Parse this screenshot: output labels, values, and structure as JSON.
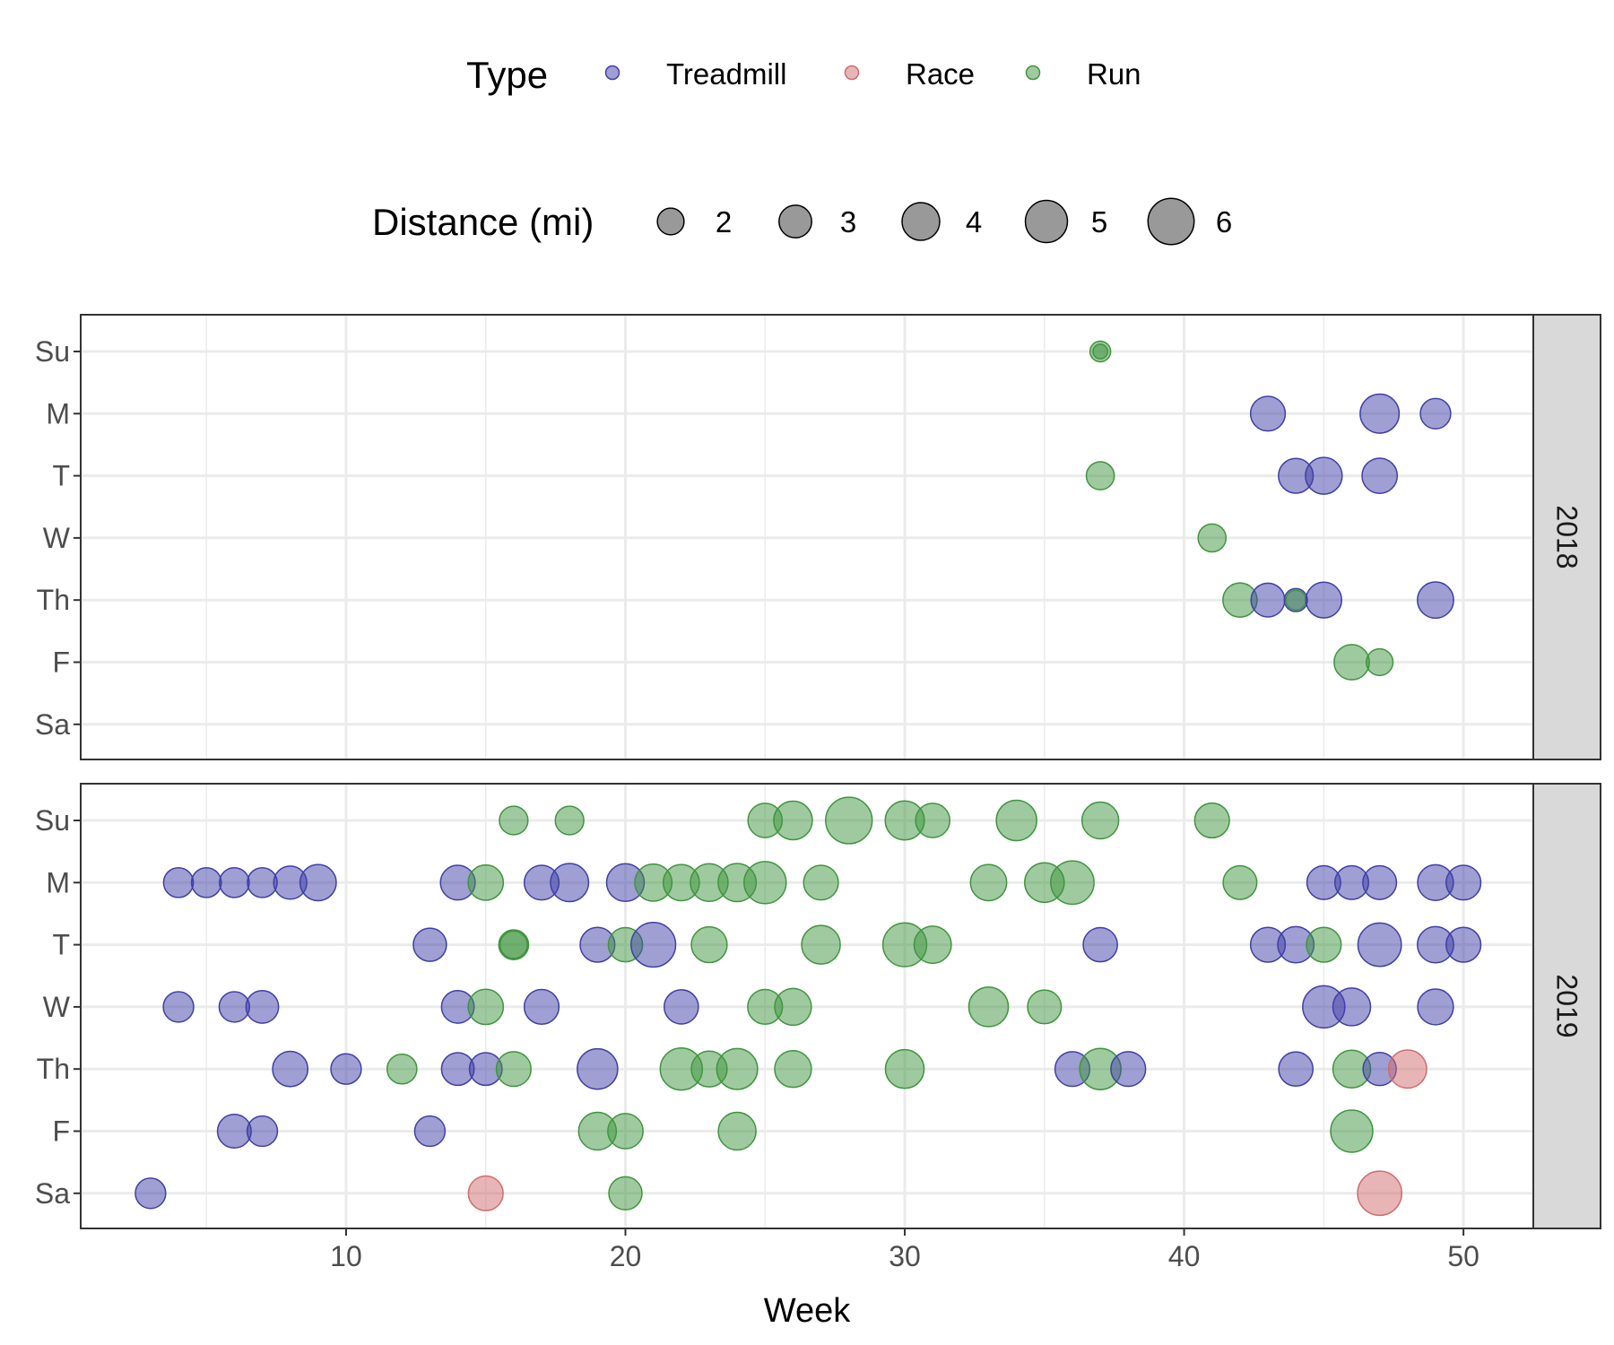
{
  "chart_data": {
    "type": "scatter",
    "xlabel": "Week",
    "x_ticks": [
      10,
      20,
      30,
      40,
      50
    ],
    "xlim": [
      0.5,
      52.5
    ],
    "y_categories": [
      "Su",
      "M",
      "T",
      "W",
      "Th",
      "F",
      "Sa"
    ],
    "facets": [
      "2018",
      "2019"
    ],
    "legend_type": {
      "title": "Type",
      "items": [
        {
          "name": "Treadmill",
          "color": "#3f3fa8"
        },
        {
          "name": "Race",
          "color": "#d06c6c"
        },
        {
          "name": "Run",
          "color": "#3f953f"
        }
      ]
    },
    "legend_size": {
      "title": "Distance (mi)",
      "values": [
        2,
        3,
        4,
        5,
        6
      ]
    },
    "points": {
      "2018": [
        {
          "week": 37,
          "day": "Su",
          "type": "Run",
          "distance": 1.2
        },
        {
          "week": 37,
          "day": "Su",
          "type": "Run",
          "distance": 0.6
        },
        {
          "week": 43,
          "day": "M",
          "type": "Treadmill",
          "distance": 3.4
        },
        {
          "week": 47,
          "day": "M",
          "type": "Treadmill",
          "distance": 4.3
        },
        {
          "week": 49,
          "day": "M",
          "type": "Treadmill",
          "distance": 2.6
        },
        {
          "week": 37,
          "day": "T",
          "type": "Run",
          "distance": 2.2
        },
        {
          "week": 44,
          "day": "T",
          "type": "Treadmill",
          "distance": 3.4
        },
        {
          "week": 45,
          "day": "T",
          "type": "Treadmill",
          "distance": 3.8
        },
        {
          "week": 47,
          "day": "T",
          "type": "Treadmill",
          "distance": 3.5
        },
        {
          "week": 41,
          "day": "W",
          "type": "Run",
          "distance": 2.2
        },
        {
          "week": 42,
          "day": "Th",
          "type": "Run",
          "distance": 3.3
        },
        {
          "week": 43,
          "day": "Th",
          "type": "Treadmill",
          "distance": 3.2
        },
        {
          "week": 44,
          "day": "Th",
          "type": "Treadmill",
          "distance": 1.5
        },
        {
          "week": 44,
          "day": "Th",
          "type": "Run",
          "distance": 1.1
        },
        {
          "week": 45,
          "day": "Th",
          "type": "Treadmill",
          "distance": 3.6
        },
        {
          "week": 49,
          "day": "Th",
          "type": "Treadmill",
          "distance": 3.7
        },
        {
          "week": 46,
          "day": "F",
          "type": "Run",
          "distance": 3.5
        },
        {
          "week": 47,
          "day": "F",
          "type": "Run",
          "distance": 2.0
        }
      ],
      "2019": [
        {
          "week": 16,
          "day": "Su",
          "type": "Run",
          "distance": 2.3
        },
        {
          "week": 18,
          "day": "Su",
          "type": "Run",
          "distance": 2.3
        },
        {
          "week": 25,
          "day": "Su",
          "type": "Run",
          "distance": 3.3
        },
        {
          "week": 26,
          "day": "Su",
          "type": "Run",
          "distance": 4.2
        },
        {
          "week": 28,
          "day": "Su",
          "type": "Run",
          "distance": 6.1
        },
        {
          "week": 30,
          "day": "Su",
          "type": "Run",
          "distance": 4.3
        },
        {
          "week": 31,
          "day": "Su",
          "type": "Run",
          "distance": 3.3
        },
        {
          "week": 34,
          "day": "Su",
          "type": "Run",
          "distance": 4.6
        },
        {
          "week": 37,
          "day": "Su",
          "type": "Run",
          "distance": 3.8
        },
        {
          "week": 41,
          "day": "Su",
          "type": "Run",
          "distance": 3.4
        },
        {
          "week": 4,
          "day": "M",
          "type": "Treadmill",
          "distance": 2.5
        },
        {
          "week": 5,
          "day": "M",
          "type": "Treadmill",
          "distance": 2.5
        },
        {
          "week": 6,
          "day": "M",
          "type": "Treadmill",
          "distance": 2.5
        },
        {
          "week": 7,
          "day": "M",
          "type": "Treadmill",
          "distance": 2.5
        },
        {
          "week": 8,
          "day": "M",
          "type": "Treadmill",
          "distance": 3.1
        },
        {
          "week": 9,
          "day": "M",
          "type": "Treadmill",
          "distance": 3.7
        },
        {
          "week": 14,
          "day": "M",
          "type": "Treadmill",
          "distance": 3.4
        },
        {
          "week": 15,
          "day": "M",
          "type": "Run",
          "distance": 3.5
        },
        {
          "week": 17,
          "day": "M",
          "type": "Treadmill",
          "distance": 3.4
        },
        {
          "week": 18,
          "day": "M",
          "type": "Treadmill",
          "distance": 4.1
        },
        {
          "week": 20,
          "day": "M",
          "type": "Treadmill",
          "distance": 4.0
        },
        {
          "week": 21,
          "day": "M",
          "type": "Run",
          "distance": 3.9
        },
        {
          "week": 22,
          "day": "M",
          "type": "Run",
          "distance": 3.7
        },
        {
          "week": 23,
          "day": "M",
          "type": "Run",
          "distance": 4.0
        },
        {
          "week": 24,
          "day": "M",
          "type": "Run",
          "distance": 4.1
        },
        {
          "week": 25,
          "day": "M",
          "type": "Run",
          "distance": 5.0
        },
        {
          "week": 27,
          "day": "M",
          "type": "Run",
          "distance": 3.4
        },
        {
          "week": 33,
          "day": "M",
          "type": "Run",
          "distance": 3.7
        },
        {
          "week": 35,
          "day": "M",
          "type": "Run",
          "distance": 4.4
        },
        {
          "week": 36,
          "day": "M",
          "type": "Run",
          "distance": 5.3
        },
        {
          "week": 42,
          "day": "M",
          "type": "Run",
          "distance": 3.2
        },
        {
          "week": 45,
          "day": "M",
          "type": "Treadmill",
          "distance": 3.2
        },
        {
          "week": 46,
          "day": "M",
          "type": "Treadmill",
          "distance": 3.2
        },
        {
          "week": 47,
          "day": "M",
          "type": "Treadmill",
          "distance": 3.2
        },
        {
          "week": 49,
          "day": "M",
          "type": "Treadmill",
          "distance": 3.6
        },
        {
          "week": 50,
          "day": "M",
          "type": "Treadmill",
          "distance": 3.4
        },
        {
          "week": 13,
          "day": "T",
          "type": "Treadmill",
          "distance": 3.1
        },
        {
          "week": 16,
          "day": "T",
          "type": "Run",
          "distance": 2.5
        },
        {
          "week": 16,
          "day": "T",
          "type": "Run",
          "distance": 2.1
        },
        {
          "week": 19,
          "day": "T",
          "type": "Treadmill",
          "distance": 3.4
        },
        {
          "week": 20,
          "day": "T",
          "type": "Run",
          "distance": 3.3
        },
        {
          "week": 21,
          "day": "T",
          "type": "Treadmill",
          "distance": 5.6
        },
        {
          "week": 23,
          "day": "T",
          "type": "Run",
          "distance": 3.6
        },
        {
          "week": 27,
          "day": "T",
          "type": "Run",
          "distance": 4.2
        },
        {
          "week": 30,
          "day": "T",
          "type": "Run",
          "distance": 5.4
        },
        {
          "week": 31,
          "day": "T",
          "type": "Run",
          "distance": 3.9
        },
        {
          "week": 37,
          "day": "T",
          "type": "Treadmill",
          "distance": 3.3
        },
        {
          "week": 43,
          "day": "T",
          "type": "Treadmill",
          "distance": 3.4
        },
        {
          "week": 44,
          "day": "T",
          "type": "Treadmill",
          "distance": 3.7
        },
        {
          "week": 45,
          "day": "T",
          "type": "Run",
          "distance": 3.4
        },
        {
          "week": 47,
          "day": "T",
          "type": "Treadmill",
          "distance": 5.3
        },
        {
          "week": 49,
          "day": "T",
          "type": "Treadmill",
          "distance": 3.7
        },
        {
          "week": 50,
          "day": "T",
          "type": "Treadmill",
          "distance": 3.4
        },
        {
          "week": 4,
          "day": "W",
          "type": "Treadmill",
          "distance": 2.6
        },
        {
          "week": 6,
          "day": "W",
          "type": "Treadmill",
          "distance": 2.6
        },
        {
          "week": 7,
          "day": "W",
          "type": "Treadmill",
          "distance": 3.0
        },
        {
          "week": 14,
          "day": "W",
          "type": "Treadmill",
          "distance": 3.0
        },
        {
          "week": 15,
          "day": "W",
          "type": "Run",
          "distance": 3.5
        },
        {
          "week": 17,
          "day": "W",
          "type": "Treadmill",
          "distance": 3.4
        },
        {
          "week": 22,
          "day": "W",
          "type": "Treadmill",
          "distance": 3.3
        },
        {
          "week": 25,
          "day": "W",
          "type": "Run",
          "distance": 3.4
        },
        {
          "week": 26,
          "day": "W",
          "type": "Run",
          "distance": 3.8
        },
        {
          "week": 33,
          "day": "W",
          "type": "Run",
          "distance": 4.4
        },
        {
          "week": 35,
          "day": "W",
          "type": "Run",
          "distance": 3.2
        },
        {
          "week": 45,
          "day": "W",
          "type": "Treadmill",
          "distance": 5.0
        },
        {
          "week": 46,
          "day": "W",
          "type": "Treadmill",
          "distance": 4.0
        },
        {
          "week": 49,
          "day": "W",
          "type": "Treadmill",
          "distance": 3.6
        },
        {
          "week": 8,
          "day": "Th",
          "type": "Treadmill",
          "distance": 3.5
        },
        {
          "week": 10,
          "day": "Th",
          "type": "Treadmill",
          "distance": 2.6
        },
        {
          "week": 12,
          "day": "Th",
          "type": "Run",
          "distance": 2.5
        },
        {
          "week": 14,
          "day": "Th",
          "type": "Treadmill",
          "distance": 3.0
        },
        {
          "week": 15,
          "day": "Th",
          "type": "Treadmill",
          "distance": 3.0
        },
        {
          "week": 16,
          "day": "Th",
          "type": "Run",
          "distance": 3.4
        },
        {
          "week": 19,
          "day": "Th",
          "type": "Treadmill",
          "distance": 4.6
        },
        {
          "week": 22,
          "day": "Th",
          "type": "Run",
          "distance": 5.0
        },
        {
          "week": 23,
          "day": "Th",
          "type": "Run",
          "distance": 3.6
        },
        {
          "week": 24,
          "day": "Th",
          "type": "Run",
          "distance": 4.7
        },
        {
          "week": 26,
          "day": "Th",
          "type": "Run",
          "distance": 3.8
        },
        {
          "week": 30,
          "day": "Th",
          "type": "Run",
          "distance": 4.2
        },
        {
          "week": 36,
          "day": "Th",
          "type": "Treadmill",
          "distance": 3.4
        },
        {
          "week": 37,
          "day": "Th",
          "type": "Run",
          "distance": 4.8
        },
        {
          "week": 38,
          "day": "Th",
          "type": "Treadmill",
          "distance": 3.4
        },
        {
          "week": 44,
          "day": "Th",
          "type": "Treadmill",
          "distance": 3.3
        },
        {
          "week": 46,
          "day": "Th",
          "type": "Run",
          "distance": 4.0
        },
        {
          "week": 47,
          "day": "Th",
          "type": "Treadmill",
          "distance": 3.1
        },
        {
          "week": 48,
          "day": "Th",
          "type": "Race",
          "distance": 4.1
        },
        {
          "week": 6,
          "day": "F",
          "type": "Treadmill",
          "distance": 3.2
        },
        {
          "week": 7,
          "day": "F",
          "type": "Treadmill",
          "distance": 2.6
        },
        {
          "week": 13,
          "day": "F",
          "type": "Treadmill",
          "distance": 2.6
        },
        {
          "week": 19,
          "day": "F",
          "type": "Run",
          "distance": 4.0
        },
        {
          "week": 20,
          "day": "F",
          "type": "Run",
          "distance": 3.5
        },
        {
          "week": 24,
          "day": "F",
          "type": "Run",
          "distance": 4.0
        },
        {
          "week": 46,
          "day": "F",
          "type": "Run",
          "distance": 5.0
        },
        {
          "week": 3,
          "day": "Sa",
          "type": "Treadmill",
          "distance": 2.6
        },
        {
          "week": 15,
          "day": "Sa",
          "type": "Race",
          "distance": 3.4
        },
        {
          "week": 20,
          "day": "Sa",
          "type": "Run",
          "distance": 3.1
        },
        {
          "week": 47,
          "day": "Sa",
          "type": "Race",
          "distance": 5.5
        }
      ]
    }
  }
}
